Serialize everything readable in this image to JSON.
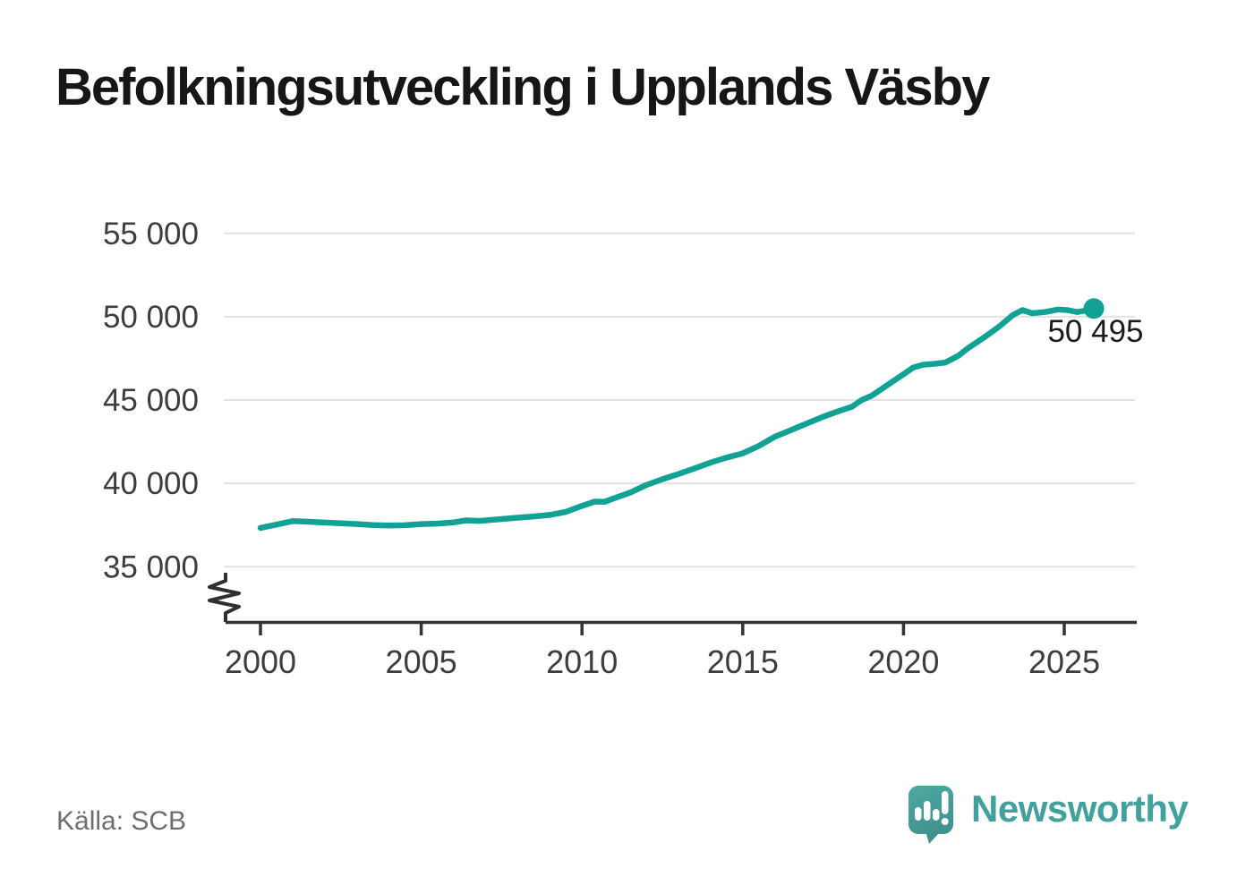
{
  "title": "Befolkningsutveckling i Upplands Väsby",
  "source": "Källa: SCB",
  "branding": {
    "name": "Newsworthy",
    "logo_icon": "speech-bubble-bar-chart-exclamation-icon",
    "text_color": "#42a19c",
    "mark_color_top": "#4fa8a3",
    "mark_color_bottom": "#3d918d"
  },
  "colors": {
    "line": "#12a195",
    "grid": "#e2e2e2",
    "axis": "#333333",
    "tick_text": "#3d3d3d",
    "title_text": "#161616",
    "annotation_text": "#1b1b1b",
    "source_text": "#6e6e6e",
    "background": "#ffffff"
  },
  "chart_data": {
    "type": "line",
    "title": "Befolkningsutveckling i Upplands Väsby",
    "xlabel": "",
    "ylabel": "",
    "grid": "horizontal",
    "axis_break": true,
    "x_range": [
      2000,
      2026
    ],
    "y_range": [
      35000,
      55000
    ],
    "x_ticks": [
      2000,
      2005,
      2010,
      2015,
      2020,
      2025
    ],
    "y_ticks": [
      {
        "value": 55000,
        "label": "55 000"
      },
      {
        "value": 50000,
        "label": "50 000"
      },
      {
        "value": 45000,
        "label": "45 000"
      },
      {
        "value": 40000,
        "label": "40 000"
      },
      {
        "value": 35000,
        "label": "35 000"
      }
    ],
    "series": [
      {
        "name": "Befolkning",
        "color": "#12a195",
        "points": [
          [
            2000.0,
            37330
          ],
          [
            2000.5,
            37530
          ],
          [
            2001.0,
            37740
          ],
          [
            2001.5,
            37700
          ],
          [
            2002.0,
            37650
          ],
          [
            2002.5,
            37610
          ],
          [
            2003.0,
            37560
          ],
          [
            2003.5,
            37500
          ],
          [
            2004.0,
            37470
          ],
          [
            2004.5,
            37490
          ],
          [
            2005.0,
            37560
          ],
          [
            2005.5,
            37590
          ],
          [
            2006.0,
            37660
          ],
          [
            2006.4,
            37780
          ],
          [
            2006.8,
            37750
          ],
          [
            2007.3,
            37830
          ],
          [
            2008.0,
            37940
          ],
          [
            2008.5,
            38020
          ],
          [
            2009.0,
            38110
          ],
          [
            2009.5,
            38290
          ],
          [
            2010.0,
            38650
          ],
          [
            2010.4,
            38910
          ],
          [
            2010.7,
            38890
          ],
          [
            2011.0,
            39110
          ],
          [
            2011.5,
            39450
          ],
          [
            2012.0,
            39900
          ],
          [
            2012.5,
            40250
          ],
          [
            2013.0,
            40560
          ],
          [
            2013.5,
            40900
          ],
          [
            2014.0,
            41250
          ],
          [
            2014.5,
            41550
          ],
          [
            2015.0,
            41800
          ],
          [
            2015.5,
            42250
          ],
          [
            2016.0,
            42800
          ],
          [
            2016.5,
            43200
          ],
          [
            2017.0,
            43600
          ],
          [
            2017.5,
            44000
          ],
          [
            2018.0,
            44350
          ],
          [
            2018.4,
            44600
          ],
          [
            2018.7,
            45000
          ],
          [
            2019.0,
            45250
          ],
          [
            2019.5,
            45900
          ],
          [
            2020.0,
            46550
          ],
          [
            2020.3,
            46950
          ],
          [
            2020.6,
            47120
          ],
          [
            2021.0,
            47180
          ],
          [
            2021.3,
            47250
          ],
          [
            2021.7,
            47650
          ],
          [
            2022.0,
            48100
          ],
          [
            2022.5,
            48750
          ],
          [
            2023.0,
            49450
          ],
          [
            2023.4,
            50100
          ],
          [
            2023.7,
            50400
          ],
          [
            2024.0,
            50210
          ],
          [
            2024.4,
            50280
          ],
          [
            2024.8,
            50430
          ],
          [
            2025.1,
            50400
          ],
          [
            2025.4,
            50280
          ],
          [
            2025.7,
            50380
          ],
          [
            2025.92,
            50495
          ]
        ]
      }
    ],
    "last_point": {
      "x": 2025.92,
      "value": 50495,
      "label": "50 495"
    }
  }
}
